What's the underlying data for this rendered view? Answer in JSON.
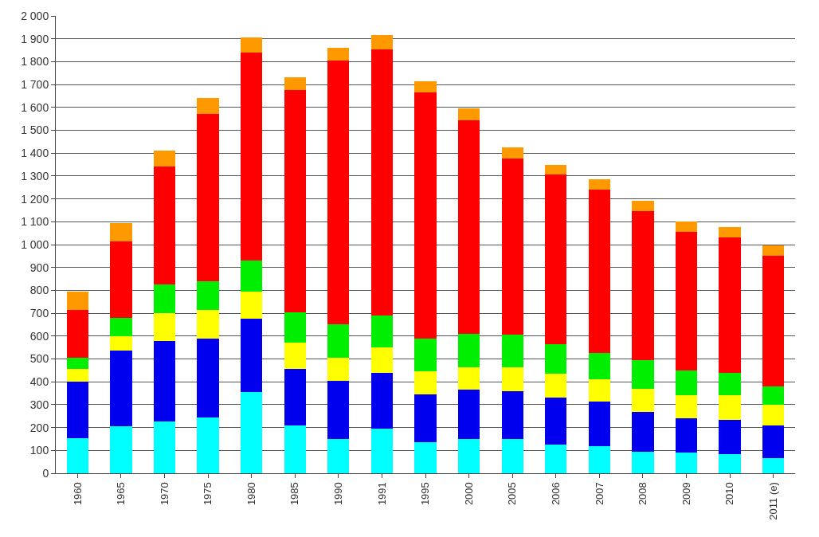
{
  "chart_data": {
    "type": "bar",
    "stacked": true,
    "categories": [
      "1960",
      "1965",
      "1970",
      "1975",
      "1980",
      "1985",
      "1990",
      "1991",
      "1995",
      "2000",
      "2005",
      "2006",
      "2007",
      "2008",
      "2009",
      "2010",
      "2011 (e)"
    ],
    "series": [
      {
        "color": "#00ffff",
        "values": [
          155,
          205,
          225,
          245,
          355,
          210,
          150,
          195,
          135,
          150,
          150,
          125,
          120,
          95,
          90,
          85,
          65
        ]
      },
      {
        "color": "#0000ee",
        "values": [
          245,
          330,
          355,
          345,
          320,
          245,
          255,
          245,
          210,
          215,
          210,
          205,
          195,
          175,
          150,
          150,
          145
        ]
      },
      {
        "color": "#ffff00",
        "values": [
          55,
          65,
          120,
          125,
          120,
          115,
          100,
          110,
          100,
          100,
          105,
          105,
          95,
          100,
          100,
          105,
          90
        ]
      },
      {
        "color": "#00ee00",
        "values": [
          50,
          80,
          125,
          125,
          135,
          135,
          145,
          140,
          145,
          145,
          140,
          130,
          115,
          125,
          110,
          100,
          80
        ]
      },
      {
        "color": "#ff0000",
        "values": [
          210,
          335,
          515,
          730,
          910,
          970,
          1155,
          1165,
          1075,
          935,
          770,
          740,
          715,
          650,
          605,
          590,
          570
        ]
      },
      {
        "color": "#ff9900",
        "values": [
          80,
          80,
          70,
          70,
          65,
          55,
          55,
          60,
          50,
          50,
          50,
          45,
          45,
          45,
          45,
          45,
          45
        ]
      }
    ],
    "ylim": [
      0,
      2000
    ],
    "yticks": [
      0,
      100,
      200,
      300,
      400,
      500,
      600,
      700,
      800,
      900,
      {
        "value": 1000,
        "label": "1 000"
      },
      {
        "value": 1100,
        "label": "1 100"
      },
      {
        "value": 1200,
        "label": "1 200"
      },
      {
        "value": 1300,
        "label": "1 300"
      },
      {
        "value": 1400,
        "label": "1 400"
      },
      {
        "value": 1500,
        "label": "1 500"
      },
      {
        "value": 1600,
        "label": "1 600"
      },
      {
        "value": 1700,
        "label": "1 700"
      },
      {
        "value": 1800,
        "label": "1 800"
      },
      {
        "value": 1900,
        "label": "1 900"
      },
      {
        "value": 2000,
        "label": "2 000"
      }
    ],
    "grid": "y"
  }
}
